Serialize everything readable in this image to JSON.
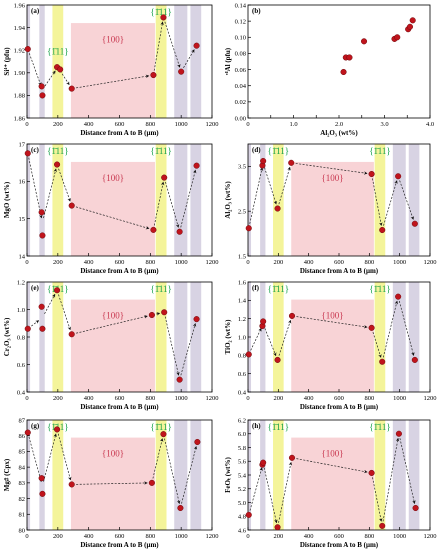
{
  "colors": {
    "zone_111": "#f4f49a",
    "zone_100": "#f8d3d6",
    "zone_gray": "#d8d3e3",
    "point_fill": "#c0141c",
    "point_stroke": "#6d0a0f",
    "label_111": "#17a14a",
    "label_100": "#c8364f"
  },
  "chart_data": [
    {
      "id": "a",
      "panel_label": "(a)",
      "type": "scatter",
      "xlabel": "Distance from A to B (μm)",
      "ylabel": "Si⁴⁺ (pfu)",
      "xlim": [
        0,
        1200
      ],
      "ylim": [
        1.86,
        1.96
      ],
      "xticks": [
        0,
        200,
        400,
        600,
        800,
        1000,
        1200
      ],
      "yticks": [
        1.86,
        1.88,
        1.9,
        1.92,
        1.94,
        1.96
      ],
      "ytick_decimals": 2,
      "zones": [
        {
          "kind": "gray",
          "x": [
            0,
            20
          ]
        },
        {
          "kind": "gray",
          "x": [
            80,
            115
          ]
        },
        {
          "kind": "111",
          "x": [
            165,
            235
          ],
          "label": "{1̄11}"
        },
        {
          "kind": "100",
          "x": [
            285,
            830
          ],
          "label": "{100}"
        },
        {
          "kind": "111",
          "x": [
            835,
            905
          ],
          "label": "{1̄11}"
        },
        {
          "kind": "gray",
          "x": [
            955,
            1040
          ]
        },
        {
          "kind": "gray",
          "x": [
            1060,
            1130
          ]
        }
      ],
      "points": [
        [
          5,
          1.921
        ],
        [
          95,
          1.888
        ],
        [
          100,
          1.88
        ],
        [
          195,
          1.905
        ],
        [
          215,
          1.903
        ],
        [
          290,
          1.886
        ],
        [
          820,
          1.898
        ],
        [
          885,
          1.949
        ],
        [
          1000,
          1.901
        ],
        [
          1100,
          1.924
        ]
      ],
      "trend": [
        [
          5,
          1.921
        ],
        [
          100,
          1.885
        ],
        [
          200,
          1.905
        ],
        [
          290,
          1.886
        ],
        [
          820,
          1.898
        ],
        [
          885,
          1.949
        ],
        [
          1000,
          1.901
        ],
        [
          1100,
          1.924
        ]
      ]
    },
    {
      "id": "b",
      "panel_label": "(b)",
      "type": "scatter",
      "xlabel": "Al₂O₃ (wt%)",
      "ylabel": "ᵛᴵAl (pfu)",
      "xlim": [
        0,
        4.0
      ],
      "ylim": [
        0.0,
        0.14
      ],
      "xticks": [
        0,
        0.5,
        1.0,
        1.5,
        2.0,
        2.5,
        3.0,
        3.5,
        4.0
      ],
      "xtick_labels": [
        "0",
        "",
        "1.0",
        "",
        "2.0",
        "",
        "3.0",
        "",
        "4.0"
      ],
      "yticks": [
        0.0,
        0.02,
        0.04,
        0.06,
        0.08,
        0.1,
        0.12,
        0.14
      ],
      "ytick_decimals": 2,
      "zones": [],
      "points": [
        [
          2.1,
          0.057
        ],
        [
          2.15,
          0.075
        ],
        [
          2.23,
          0.075
        ],
        [
          2.55,
          0.095
        ],
        [
          3.22,
          0.098
        ],
        [
          3.28,
          0.1
        ],
        [
          3.52,
          0.11
        ],
        [
          3.56,
          0.113
        ],
        [
          3.62,
          0.121
        ]
      ],
      "trend": []
    },
    {
      "id": "c",
      "panel_label": "(c)",
      "type": "scatter",
      "xlabel": "Distance from A to B (μm)",
      "ylabel": "MgO (wt%)",
      "xlim": [
        0,
        1200
      ],
      "ylim": [
        14,
        17
      ],
      "xticks": [
        0,
        200,
        400,
        600,
        800,
        1000,
        1200
      ],
      "yticks": [
        14,
        15,
        16,
        17
      ],
      "ytick_decimals": 0,
      "zones": [
        {
          "kind": "gray",
          "x": [
            0,
            20
          ]
        },
        {
          "kind": "gray",
          "x": [
            80,
            115
          ]
        },
        {
          "kind": "111",
          "x": [
            165,
            235
          ],
          "label": "{1̄11}"
        },
        {
          "kind": "100",
          "x": [
            285,
            830
          ],
          "label": "{100}"
        },
        {
          "kind": "111",
          "x": [
            835,
            905
          ],
          "label": "{1̄11}"
        },
        {
          "kind": "gray",
          "x": [
            955,
            1040
          ]
        },
        {
          "kind": "gray",
          "x": [
            1060,
            1130
          ]
        }
      ],
      "points": [
        [
          5,
          16.75
        ],
        [
          95,
          15.17
        ],
        [
          100,
          14.55
        ],
        [
          195,
          16.45
        ],
        [
          290,
          15.35
        ],
        [
          820,
          14.7
        ],
        [
          890,
          16.1
        ],
        [
          990,
          14.65
        ],
        [
          1100,
          16.42
        ]
      ],
      "trend": [
        [
          5,
          16.75
        ],
        [
          100,
          14.9
        ],
        [
          195,
          16.45
        ],
        [
          290,
          15.35
        ],
        [
          820,
          14.7
        ],
        [
          890,
          16.1
        ],
        [
          990,
          14.65
        ],
        [
          1100,
          16.42
        ]
      ]
    },
    {
      "id": "d",
      "panel_label": "(d)",
      "type": "scatter",
      "xlabel": "Distance from A to B (μm)",
      "ylabel": "Al₂O₃ (wt%)",
      "xlim": [
        0,
        1200
      ],
      "ylim": [
        1.5,
        4.0
      ],
      "xticks": [
        0,
        200,
        400,
        600,
        800,
        1000,
        1200
      ],
      "yticks": [
        1.5,
        2.5,
        3.5
      ],
      "ytick_decimals": 1,
      "zones": [
        {
          "kind": "gray",
          "x": [
            0,
            20
          ]
        },
        {
          "kind": "gray",
          "x": [
            80,
            115
          ]
        },
        {
          "kind": "111",
          "x": [
            165,
            235
          ],
          "label": "{1̄11}"
        },
        {
          "kind": "100",
          "x": [
            285,
            830
          ],
          "label": "{100}"
        },
        {
          "kind": "111",
          "x": [
            835,
            905
          ],
          "label": "{1̄11}"
        },
        {
          "kind": "gray",
          "x": [
            955,
            1040
          ]
        },
        {
          "kind": "gray",
          "x": [
            1060,
            1130
          ]
        }
      ],
      "points": [
        [
          5,
          2.12
        ],
        [
          95,
          3.52
        ],
        [
          100,
          3.62
        ],
        [
          195,
          2.56
        ],
        [
          285,
          3.58
        ],
        [
          815,
          3.33
        ],
        [
          885,
          2.08
        ],
        [
          990,
          3.28
        ],
        [
          1100,
          2.22
        ]
      ],
      "trend": [
        [
          5,
          2.12
        ],
        [
          100,
          3.57
        ],
        [
          195,
          2.56
        ],
        [
          285,
          3.58
        ],
        [
          815,
          3.33
        ],
        [
          885,
          2.08
        ],
        [
          990,
          3.28
        ],
        [
          1100,
          2.22
        ]
      ]
    },
    {
      "id": "e",
      "panel_label": "(e)",
      "type": "scatter",
      "xlabel": "Distance from A to B (μm)",
      "ylabel": "Cr₂O₃ (wt%)",
      "xlim": [
        0,
        1200
      ],
      "ylim": [
        0.4,
        1.2
      ],
      "xticks": [
        0,
        200,
        400,
        600,
        800,
        1000,
        1200
      ],
      "yticks": [
        0.4,
        0.6,
        0.8,
        1.0,
        1.2
      ],
      "ytick_decimals": 1,
      "zones": [
        {
          "kind": "gray",
          "x": [
            0,
            20
          ]
        },
        {
          "kind": "gray",
          "x": [
            80,
            115
          ]
        },
        {
          "kind": "111",
          "x": [
            165,
            235
          ],
          "label": "{1̄11}"
        },
        {
          "kind": "100",
          "x": [
            285,
            830
          ],
          "label": "{100}"
        },
        {
          "kind": "111",
          "x": [
            835,
            905
          ],
          "label": "{1̄11}"
        },
        {
          "kind": "gray",
          "x": [
            955,
            1040
          ]
        },
        {
          "kind": "gray",
          "x": [
            1060,
            1130
          ]
        }
      ],
      "points": [
        [
          5,
          0.86
        ],
        [
          95,
          1.02
        ],
        [
          100,
          0.86
        ],
        [
          195,
          1.14
        ],
        [
          290,
          0.82
        ],
        [
          810,
          0.96
        ],
        [
          890,
          0.98
        ],
        [
          990,
          0.49
        ],
        [
          1100,
          0.93
        ]
      ],
      "trend": [
        [
          5,
          0.86
        ],
        [
          100,
          0.94
        ],
        [
          195,
          1.14
        ],
        [
          290,
          0.82
        ],
        [
          810,
          0.96
        ],
        [
          890,
          0.98
        ],
        [
          990,
          0.49
        ],
        [
          1100,
          0.93
        ]
      ]
    },
    {
      "id": "f",
      "panel_label": "(f)",
      "type": "scatter",
      "xlabel": "Distance from A to B (μm)",
      "ylabel": "TiO₂ (wt%)",
      "xlim": [
        0,
        1200
      ],
      "ylim": [
        0.4,
        1.6
      ],
      "xticks": [
        0,
        200,
        400,
        600,
        800,
        1000,
        1200
      ],
      "yticks": [
        0.4,
        0.6,
        0.8,
        1.0,
        1.2,
        1.4,
        1.6
      ],
      "ytick_decimals": 1,
      "zones": [
        {
          "kind": "gray",
          "x": [
            0,
            20
          ]
        },
        {
          "kind": "gray",
          "x": [
            80,
            115
          ]
        },
        {
          "kind": "111",
          "x": [
            165,
            235
          ],
          "label": "{1̄11}"
        },
        {
          "kind": "100",
          "x": [
            285,
            830
          ],
          "label": "{100}"
        },
        {
          "kind": "111",
          "x": [
            835,
            905
          ],
          "label": "{1̄11}"
        },
        {
          "kind": "gray",
          "x": [
            955,
            1040
          ]
        },
        {
          "kind": "gray",
          "x": [
            1060,
            1130
          ]
        }
      ],
      "points": [
        [
          5,
          0.81
        ],
        [
          95,
          1.12
        ],
        [
          100,
          1.17
        ],
        [
          195,
          0.75
        ],
        [
          290,
          1.23
        ],
        [
          815,
          1.1
        ],
        [
          885,
          0.73
        ],
        [
          990,
          1.44
        ],
        [
          1100,
          0.75
        ]
      ],
      "trend": [
        [
          5,
          0.81
        ],
        [
          100,
          1.14
        ],
        [
          195,
          0.75
        ],
        [
          290,
          1.23
        ],
        [
          815,
          1.1
        ],
        [
          885,
          0.73
        ],
        [
          990,
          1.44
        ],
        [
          1100,
          0.75
        ]
      ]
    },
    {
      "id": "g",
      "panel_label": "(g)",
      "type": "scatter",
      "xlabel": "Distance from A to B (μm)",
      "ylabel": "Mg# (Cpx)",
      "xlim": [
        0,
        1200
      ],
      "ylim": [
        80,
        87
      ],
      "xticks": [
        0,
        200,
        400,
        600,
        800,
        1000,
        1200
      ],
      "yticks": [
        80,
        81,
        82,
        83,
        84,
        85,
        86,
        87
      ],
      "ytick_decimals": 0,
      "zones": [
        {
          "kind": "gray",
          "x": [
            0,
            20
          ]
        },
        {
          "kind": "gray",
          "x": [
            80,
            115
          ]
        },
        {
          "kind": "111",
          "x": [
            165,
            235
          ],
          "label": "{1̄11}"
        },
        {
          "kind": "100",
          "x": [
            285,
            830
          ],
          "label": "{100}"
        },
        {
          "kind": "111",
          "x": [
            835,
            905
          ],
          "label": "{1̄11}"
        },
        {
          "kind": "gray",
          "x": [
            955,
            1040
          ]
        },
        {
          "kind": "gray",
          "x": [
            1060,
            1130
          ]
        }
      ],
      "points": [
        [
          5,
          86.2
        ],
        [
          95,
          83.3
        ],
        [
          100,
          82.3
        ],
        [
          195,
          86.4
        ],
        [
          290,
          82.9
        ],
        [
          810,
          83.0
        ],
        [
          885,
          86.1
        ],
        [
          995,
          81.4
        ],
        [
          1105,
          85.6
        ]
      ],
      "trend": [
        [
          5,
          86.2
        ],
        [
          100,
          82.8
        ],
        [
          195,
          86.4
        ],
        [
          290,
          82.9
        ],
        [
          810,
          83.0
        ],
        [
          885,
          86.1
        ],
        [
          995,
          81.4
        ],
        [
          1105,
          85.6
        ]
      ]
    },
    {
      "id": "h",
      "panel_label": "(h)",
      "type": "scatter",
      "xlabel": "Distance from A to B (μm)",
      "ylabel": "FeOₜ (wt%)",
      "xlim": [
        0,
        1200
      ],
      "ylim": [
        4.6,
        6.2
      ],
      "xticks": [
        0,
        200,
        400,
        600,
        800,
        1000,
        1200
      ],
      "yticks": [
        4.6,
        4.8,
        5.0,
        5.2,
        5.4,
        5.6,
        5.8,
        6.0,
        6.2
      ],
      "ytick_decimals": 1,
      "zones": [
        {
          "kind": "gray",
          "x": [
            0,
            20
          ]
        },
        {
          "kind": "gray",
          "x": [
            80,
            115
          ]
        },
        {
          "kind": "111",
          "x": [
            165,
            235
          ],
          "label": "{1̄11}"
        },
        {
          "kind": "100",
          "x": [
            285,
            830
          ],
          "label": "{100}"
        },
        {
          "kind": "111",
          "x": [
            835,
            905
          ],
          "label": "{1̄11}"
        },
        {
          "kind": "gray",
          "x": [
            955,
            1040
          ]
        },
        {
          "kind": "gray",
          "x": [
            1060,
            1130
          ]
        }
      ],
      "points": [
        [
          5,
          4.82
        ],
        [
          95,
          5.55
        ],
        [
          100,
          5.58
        ],
        [
          195,
          4.64
        ],
        [
          290,
          5.65
        ],
        [
          815,
          5.43
        ],
        [
          885,
          4.66
        ],
        [
          995,
          6.0
        ],
        [
          1105,
          4.92
        ]
      ],
      "trend": [
        [
          5,
          4.82
        ],
        [
          100,
          5.57
        ],
        [
          195,
          4.64
        ],
        [
          290,
          5.65
        ],
        [
          815,
          5.43
        ],
        [
          885,
          4.66
        ],
        [
          995,
          6.0
        ],
        [
          1105,
          4.92
        ]
      ]
    }
  ]
}
